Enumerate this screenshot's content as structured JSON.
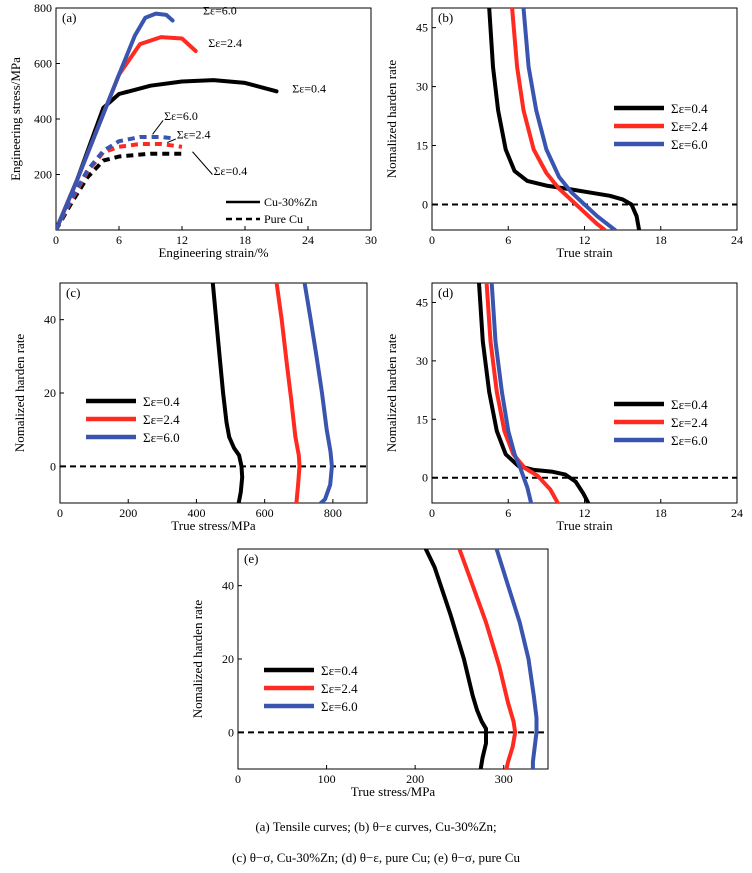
{
  "captions": {
    "line1": "(a)  Tensile curves;  (b)  θ−ε  curves, Cu-30%Zn;",
    "line2": "(c) θ−σ, Cu-30%Zn; (d) θ−ε,    pure Cu; (e) θ−σ, pure Cu"
  },
  "colors": {
    "s04": "#000000",
    "s24": "#ff2a20",
    "s60": "#3a55b0"
  },
  "chart_data": [
    {
      "panel": "(a)",
      "type": "line",
      "xlabel": "Engineering strain/%",
      "ylabel": "Engineering stress/MPa",
      "xlim": [
        0,
        30
      ],
      "ylim": [
        0,
        800
      ],
      "xticks": [
        0,
        6,
        12,
        18,
        24,
        30
      ],
      "yticks": [
        200,
        400,
        600,
        800
      ],
      "legend": [
        {
          "label": "Cu-30%Zn",
          "style": "solid"
        },
        {
          "label": "Pure Cu",
          "style": "dashed"
        }
      ],
      "series": [
        {
          "name": "Σε=0.4",
          "color": "#000000",
          "dash": false,
          "x": [
            0,
            2,
            4.5,
            6,
            9,
            12,
            15,
            18,
            21
          ],
          "y": [
            0,
            180,
            440,
            490,
            520,
            535,
            540,
            530,
            500
          ]
        },
        {
          "name": "Σε=2.4",
          "color": "#ff2a20",
          "dash": false,
          "x": [
            0,
            2,
            4,
            6,
            8,
            10,
            12,
            13.3
          ],
          "y": [
            0,
            180,
            370,
            560,
            670,
            695,
            690,
            645
          ]
        },
        {
          "name": "Σε=6.0",
          "color": "#3a55b0",
          "dash": false,
          "x": [
            0,
            2,
            4,
            6,
            7.5,
            8.5,
            9.5,
            10.5,
            11.1
          ],
          "y": [
            0,
            180,
            370,
            560,
            700,
            765,
            780,
            775,
            755
          ]
        },
        {
          "name": "Σε=0.4",
          "color": "#000000",
          "dash": true,
          "x": [
            0,
            1.5,
            3,
            4.5,
            6,
            9,
            12
          ],
          "y": [
            0,
            100,
            190,
            250,
            265,
            275,
            275
          ]
        },
        {
          "name": "Σε=2.4",
          "color": "#ff2a20",
          "dash": true,
          "x": [
            0,
            1.5,
            3,
            4.5,
            6,
            8,
            10,
            12
          ],
          "y": [
            0,
            110,
            210,
            280,
            300,
            310,
            310,
            300
          ]
        },
        {
          "name": "Σε=6.0",
          "color": "#3a55b0",
          "dash": true,
          "x": [
            0,
            1.5,
            3,
            4.5,
            6,
            8,
            10,
            11.2
          ],
          "y": [
            0,
            115,
            215,
            285,
            320,
            335,
            335,
            330
          ]
        }
      ],
      "annotations": [
        {
          "text": "Σε=6.0",
          "x": 14,
          "y": 777
        },
        {
          "text": "Σε=2.4",
          "x": 14.5,
          "y": 660
        },
        {
          "text": "Σε=0.4",
          "x": 22.5,
          "y": 495
        },
        {
          "text": "Σε=6.0",
          "x": 10.3,
          "y": 397
        },
        {
          "text": "Σε=2.4",
          "x": 11.5,
          "y": 330
        },
        {
          "text": "Σε=0.4",
          "x": 15,
          "y": 198
        }
      ]
    },
    {
      "panel": "(b)",
      "type": "line",
      "xlabel": "True strain",
      "ylabel": "Nomalized harden rate",
      "xlim": [
        0,
        24
      ],
      "ylim": [
        -6.5,
        50
      ],
      "xticks": [
        0,
        6,
        12,
        18,
        24
      ],
      "yticks": [
        0,
        15,
        30,
        45
      ],
      "hline": 0,
      "legend_position": "right-middle",
      "series": [
        {
          "name": "Σε=0.4",
          "color": "#000000",
          "x": [
            4.5,
            4.8,
            5.2,
            5.8,
            6.5,
            7.5,
            9,
            11,
            12.5,
            14,
            15,
            15.7,
            16.1,
            16.3
          ],
          "y": [
            50,
            35,
            24,
            14,
            8.5,
            6,
            4.8,
            3.8,
            3,
            2.2,
            1.3,
            0,
            -3,
            -6.5
          ]
        },
        {
          "name": "Σε=2.4",
          "color": "#ff2a20",
          "x": [
            6.3,
            6.7,
            7.2,
            8,
            9,
            10,
            11,
            12,
            13,
            13.6
          ],
          "y": [
            50,
            35,
            24,
            14,
            8,
            4,
            1,
            -2,
            -5,
            -6.5
          ]
        },
        {
          "name": "Σε=6.0",
          "color": "#3a55b0",
          "x": [
            7.2,
            7.6,
            8.2,
            9,
            10,
            11,
            12,
            13,
            14,
            14.4
          ],
          "y": [
            50,
            35,
            24,
            14,
            7,
            3,
            0,
            -3,
            -5.5,
            -6.5
          ]
        }
      ]
    },
    {
      "panel": "(c)",
      "type": "line",
      "xlabel": "True stress/MPa",
      "ylabel": "Nomalized harden rate",
      "xlim": [
        0,
        900
      ],
      "ylim": [
        -10,
        50
      ],
      "xticks": [
        0,
        200,
        400,
        600,
        800
      ],
      "yticks": [
        0,
        20,
        40
      ],
      "hline": 0,
      "legend_position": "left-middle",
      "series": [
        {
          "name": "Σε=0.4",
          "color": "#000000",
          "x": [
            448,
            458,
            468,
            478,
            488,
            496,
            510,
            525,
            532,
            534,
            530,
            524
          ],
          "y": [
            50,
            40,
            30,
            20,
            12,
            8,
            5,
            3,
            0,
            -3,
            -7,
            -10
          ]
        },
        {
          "name": "Σε=2.4",
          "color": "#ff2a20",
          "x": [
            635,
            650,
            665,
            678,
            690,
            700,
            702,
            698,
            693
          ],
          "y": [
            50,
            40,
            28,
            18,
            8,
            3,
            0,
            -5,
            -10
          ]
        },
        {
          "name": "Σε=6.0",
          "color": "#3a55b0",
          "x": [
            717,
            735,
            752,
            768,
            782,
            793,
            797,
            792,
            777,
            765
          ],
          "y": [
            50,
            40,
            30,
            20,
            10,
            4,
            0,
            -5,
            -9,
            -10
          ]
        }
      ]
    },
    {
      "panel": "(d)",
      "type": "line",
      "xlabel": "True strain",
      "ylabel": "Nomalized harden rate",
      "xlim": [
        0,
        24
      ],
      "ylim": [
        -6.5,
        50
      ],
      "xticks": [
        0,
        6,
        12,
        18,
        24
      ],
      "yticks": [
        0,
        15,
        30,
        45
      ],
      "hline": 0,
      "legend_position": "right-middle",
      "series": [
        {
          "name": "Σε=0.4",
          "color": "#000000",
          "x": [
            3.7,
            4,
            4.5,
            5.1,
            5.8,
            6.8,
            8,
            9.5,
            10.5,
            11.3,
            11.9,
            12.3
          ],
          "y": [
            50,
            35,
            22,
            12,
            6,
            3,
            2,
            1.5,
            0.8,
            -1,
            -4,
            -6.5
          ]
        },
        {
          "name": "Σε=2.4",
          "color": "#ff2a20",
          "x": [
            4.3,
            4.6,
            5.1,
            5.7,
            6.4,
            7.3,
            8.3,
            9.3,
            9.9
          ],
          "y": [
            50,
            35,
            22,
            12,
            6,
            2.5,
            0.5,
            -3,
            -6.5
          ]
        },
        {
          "name": "Σε=6.0",
          "color": "#3a55b0",
          "x": [
            4.7,
            5,
            5.5,
            6,
            6.5,
            7,
            7.5,
            7.8
          ],
          "y": [
            50,
            35,
            22,
            12,
            6,
            2,
            -2.5,
            -6.5
          ]
        }
      ]
    },
    {
      "panel": "(e)",
      "type": "line",
      "xlabel": "True stress/MPa",
      "ylabel": "Nomalized harden rate",
      "xlim": [
        0,
        350
      ],
      "ylim": [
        -10,
        50
      ],
      "xticks": [
        0,
        100,
        200,
        300
      ],
      "yticks": [
        0,
        20,
        40
      ],
      "hline": 0,
      "legend_position": "left-middle",
      "series": [
        {
          "name": "Σε=0.4",
          "color": "#000000",
          "x": [
            212,
            222,
            240,
            255,
            265,
            270,
            275,
            280,
            280,
            276,
            274
          ],
          "y": [
            50,
            45,
            32,
            20,
            10,
            6,
            3,
            1,
            -3,
            -7,
            -10
          ]
        },
        {
          "name": "Σε=2.4",
          "color": "#ff2a20",
          "x": [
            250,
            262,
            280,
            295,
            305,
            311,
            313,
            310,
            305,
            303
          ],
          "y": [
            50,
            42,
            30,
            18,
            8,
            3,
            0,
            -4,
            -8,
            -10
          ]
        },
        {
          "name": "Σε=6.0",
          "color": "#3a55b0",
          "x": [
            292,
            305,
            318,
            328,
            334,
            337,
            337,
            335,
            333,
            333
          ],
          "y": [
            50,
            40,
            30,
            20,
            10,
            4,
            0,
            -4,
            -8,
            -10
          ]
        }
      ]
    }
  ]
}
